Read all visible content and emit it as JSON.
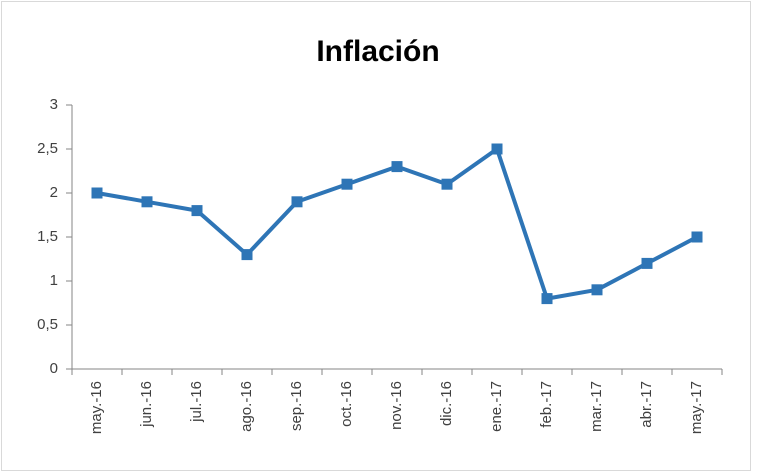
{
  "chart_data": {
    "type": "line",
    "title": "Inflación",
    "categories": [
      "may.-16",
      "jun.-16",
      "jul.-16",
      "ago.-16",
      "sep.-16",
      "oct.-16",
      "nov.-16",
      "dic.-16",
      "ene.-17",
      "feb.-17",
      "mar.-17",
      "abr.-17",
      "may.-17"
    ],
    "values": [
      2.0,
      1.9,
      1.8,
      1.3,
      1.9,
      2.1,
      2.3,
      2.1,
      2.5,
      0.8,
      0.9,
      1.2,
      1.5
    ],
    "color": "#2e75b6",
    "ylim": [
      0,
      3
    ],
    "yticks": [
      0,
      {
        "value": 0.5,
        "label": "0,5"
      },
      1,
      {
        "value": 1.5,
        "label": "1,5"
      },
      2,
      {
        "value": 2.5,
        "label": "2,5"
      },
      3
    ],
    "grid": false
  }
}
